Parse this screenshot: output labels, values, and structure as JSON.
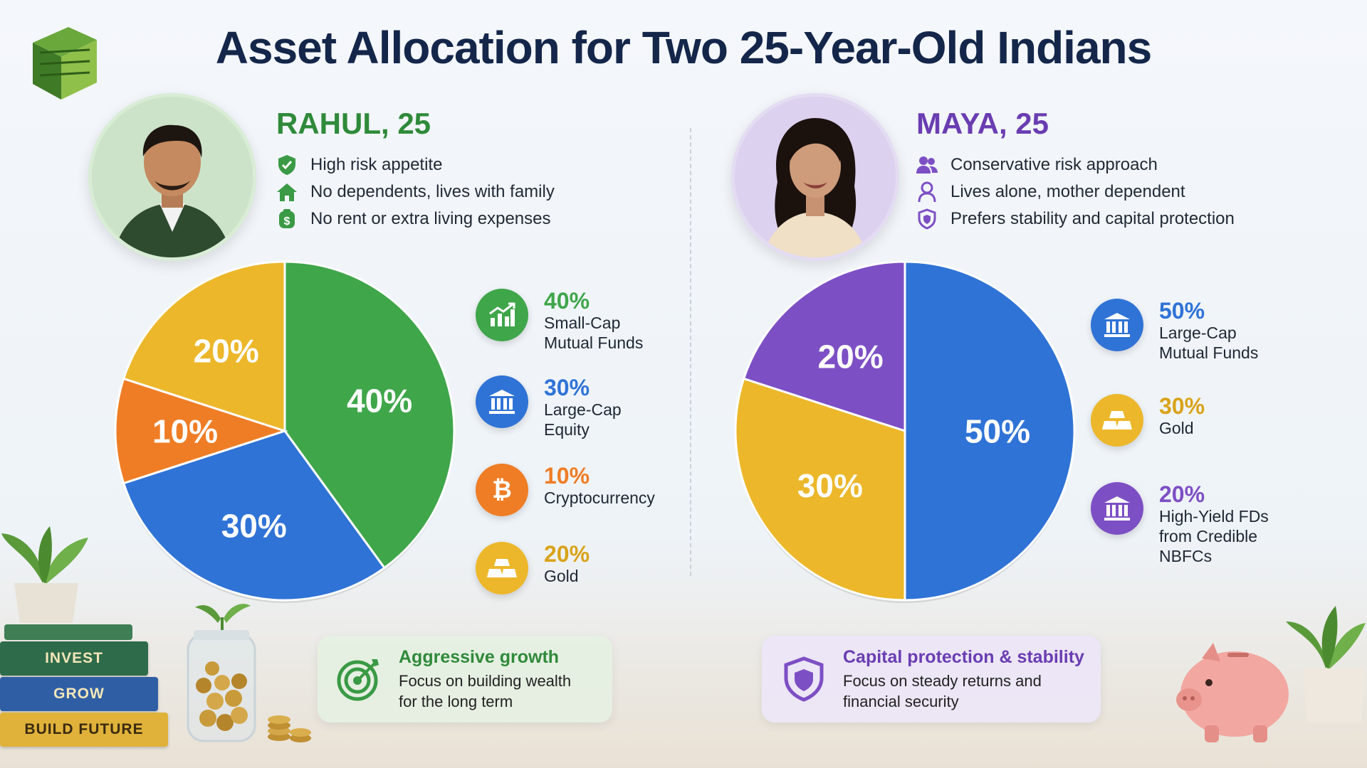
{
  "title": "Asset Allocation for Two 25-Year-Old Indians",
  "colors": {
    "green": "#3fa64a",
    "blue": "#2f73d6",
    "orange": "#ef7d25",
    "gold": "#ecb72a",
    "purple": "#7d4fc4",
    "rahul_name": "#2f8a3a",
    "maya_name": "#6a3db2"
  },
  "rahul": {
    "name": "RAHUL, 25",
    "traits": [
      {
        "icon": "shield-check-icon",
        "text": "High risk appetite"
      },
      {
        "icon": "house-icon",
        "text": "No dependents, lives with family"
      },
      {
        "icon": "money-icon",
        "text": "No rent or extra living expenses"
      }
    ],
    "legend": [
      {
        "icon": "growth-chart-icon",
        "pct": "40%",
        "label": "Small-Cap\nMutual Funds",
        "color": "#3fa64a"
      },
      {
        "icon": "bank-icon",
        "pct": "30%",
        "label": "Large-Cap\nEquity",
        "color": "#2f73d6"
      },
      {
        "icon": "bitcoin-icon",
        "pct": "10%",
        "label": "Cryptocurrency",
        "color": "#ef7d25"
      },
      {
        "icon": "gold-bars-icon",
        "pct": "20%",
        "label": "Gold",
        "color": "#ecb72a"
      }
    ],
    "card": {
      "icon": "target-icon",
      "title": "Aggressive growth",
      "desc": "Focus on building wealth\nfor the long term"
    }
  },
  "maya": {
    "name": "MAYA, 25",
    "traits": [
      {
        "icon": "people-icon",
        "text": "Conservative risk approach"
      },
      {
        "icon": "person-icon",
        "text": "Lives alone, mother dependent"
      },
      {
        "icon": "shield-icon",
        "text": "Prefers stability and capital protection"
      }
    ],
    "legend": [
      {
        "icon": "bank-icon",
        "pct": "50%",
        "label": "Large-Cap\nMutual Funds",
        "color": "#2f73d6"
      },
      {
        "icon": "gold-bars-icon",
        "pct": "30%",
        "label": "Gold",
        "color": "#ecb72a"
      },
      {
        "icon": "bank-icon",
        "pct": "20%",
        "label": "High-Yield FDs\nfrom Credible\nNBFCs",
        "color": "#7d4fc4"
      }
    ],
    "card": {
      "icon": "shield-icon",
      "title": "Capital protection & stability",
      "desc": "Focus on steady returns and\nfinancial security"
    }
  },
  "decor": {
    "books": [
      "INVEST",
      "GROW",
      "BUILD FUTURE"
    ]
  },
  "chart_data": [
    {
      "type": "pie",
      "categories": [
        "Small-Cap Mutual Funds",
        "Large-Cap Equity",
        "Cryptocurrency",
        "Gold"
      ],
      "values": [
        40,
        30,
        10,
        20
      ],
      "labels": [
        "40%",
        "30%",
        "10%",
        "20%"
      ],
      "colors": [
        "#3fa64a",
        "#2f73d6",
        "#ef7d25",
        "#ecb72a"
      ]
    },
    {
      "type": "pie",
      "categories": [
        "Large-Cap Mutual Funds",
        "Gold",
        "High-Yield FDs from Credible NBFCs"
      ],
      "values": [
        50,
        30,
        20
      ],
      "labels": [
        "50%",
        "30%",
        "20%"
      ],
      "colors": [
        "#2f73d6",
        "#ecb72a",
        "#7d4fc4"
      ]
    }
  ]
}
